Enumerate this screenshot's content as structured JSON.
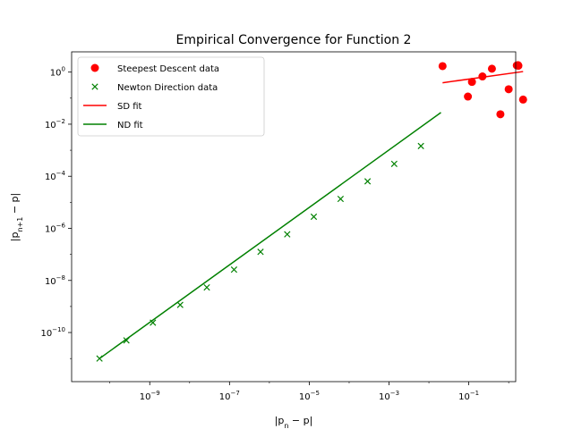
{
  "chart_data": {
    "type": "scatter",
    "title": "Empirical Convergence for Function 2",
    "xlabel": "|p_n − p|",
    "ylabel": "|p_{n+1} − p|",
    "x_scale": "log",
    "y_scale": "log",
    "xlim": [
      1.1e-11,
      1.5
    ],
    "ylim": [
      1.3e-12,
      6
    ],
    "grid": false,
    "legend_position": "top-left",
    "x_ticks": [
      {
        "value": 1e-09,
        "mantissa": "10",
        "exp": "−9"
      },
      {
        "value": 1e-07,
        "mantissa": "10",
        "exp": "−7"
      },
      {
        "value": 1e-05,
        "mantissa": "10",
        "exp": "−5"
      },
      {
        "value": 0.001,
        "mantissa": "10",
        "exp": "−3"
      },
      {
        "value": 0.1,
        "mantissa": "10",
        "exp": "−1"
      }
    ],
    "y_ticks": [
      {
        "value": 1e-10,
        "mantissa": "10",
        "exp": "−10"
      },
      {
        "value": 1e-08,
        "mantissa": "10",
        "exp": "−8"
      },
      {
        "value": 1e-06,
        "mantissa": "10",
        "exp": "−6"
      },
      {
        "value": 0.0001,
        "mantissa": "10",
        "exp": "−4"
      },
      {
        "value": 0.01,
        "mantissa": "10",
        "exp": "−2"
      },
      {
        "value": 1,
        "mantissa": "10",
        "exp": "0"
      }
    ],
    "series": [
      {
        "name": "Steepest Descent data",
        "kind": "marker-circle",
        "color": "#ff0000",
        "x": [
          0.022,
          0.095,
          0.12,
          0.22,
          0.38,
          0.62,
          1.0,
          1.6,
          1.72,
          1.75,
          2.3
        ],
        "y": [
          1.7,
          0.115,
          0.42,
          0.68,
          1.35,
          0.024,
          0.22,
          1.8,
          1.85,
          1.75,
          0.088
        ]
      },
      {
        "name": "Newton Direction data",
        "kind": "marker-x",
        "color": "#008000",
        "x": [
          5.5e-11,
          2.6e-10,
          1.2e-09,
          5.8e-09,
          2.7e-08,
          1.3e-07,
          6e-07,
          2.8e-06,
          1.3e-05,
          6.1e-05,
          0.00029,
          0.00135,
          0.0063
        ],
        "y": [
          1e-11,
          5e-11,
          2.4e-10,
          1.15e-09,
          5.4e-09,
          2.6e-08,
          1.25e-07,
          5.9e-07,
          2.8e-06,
          1.35e-05,
          6.4e-05,
          0.0003,
          0.00145
        ]
      },
      {
        "name": "SD fit",
        "kind": "line",
        "color": "#ff0000",
        "x": [
          0.022,
          2.3
        ],
        "y": [
          0.39,
          1.05
        ]
      },
      {
        "name": "ND fit",
        "kind": "line",
        "color": "#008000",
        "x": [
          5.5e-11,
          0.02
        ],
        "y": [
          1e-11,
          0.028
        ]
      }
    ]
  }
}
